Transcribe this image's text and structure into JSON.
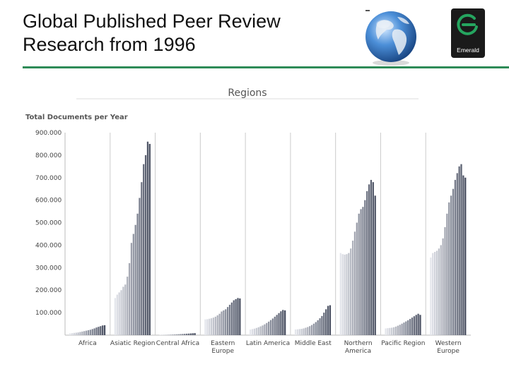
{
  "slide": {
    "title_line1": "Global Published Peer Review",
    "title_line2": "Research from 1996",
    "logo_text": "Emerald",
    "accent_color": "#2e8b57"
  },
  "chart_data": {
    "type": "bar",
    "title": "Regions",
    "ylabel": "Total Documents per Year",
    "ylim": [
      0,
      900000
    ],
    "yticks": [
      "900.000",
      "800.000",
      "700.000",
      "600.000",
      "500.000",
      "400.000",
      "300.000",
      "200.000",
      "100.000"
    ],
    "grid": false,
    "legend": "none",
    "categories": [
      {
        "label_lines": [
          "Africa"
        ],
        "values": [
          8000,
          9000,
          10000,
          11000,
          12000,
          14000,
          16000,
          18000,
          20000,
          22000,
          24000,
          27000,
          30000,
          34000,
          37000,
          40000,
          43000,
          44000
        ]
      },
      {
        "label_lines": [
          "Asiatic Region"
        ],
        "values": [
          165000,
          180000,
          190000,
          200000,
          215000,
          225000,
          260000,
          320000,
          410000,
          450000,
          490000,
          540000,
          610000,
          680000,
          760000,
          800000,
          860000,
          850000
        ]
      },
      {
        "label_lines": [
          "Central Africa"
        ],
        "values": [
          1500,
          1700,
          2000,
          2200,
          2500,
          2800,
          3100,
          3500,
          3900,
          4300,
          4800,
          5300,
          5900,
          6500,
          7000,
          7800,
          8500,
          9000
        ]
      },
      {
        "label_lines": [
          "Eastern",
          "Europe"
        ],
        "values": [
          70000,
          71000,
          73000,
          75000,
          78000,
          82000,
          88000,
          95000,
          105000,
          110000,
          115000,
          125000,
          135000,
          145000,
          155000,
          160000,
          165000,
          163000
        ]
      },
      {
        "label_lines": [
          "Latin America"
        ],
        "values": [
          25000,
          27000,
          29000,
          32000,
          35000,
          39000,
          43000,
          48000,
          54000,
          60000,
          67000,
          74000,
          82000,
          90000,
          98000,
          106000,
          112000,
          110000
        ]
      },
      {
        "label_lines": [
          "Middle East"
        ],
        "values": [
          25000,
          26000,
          27000,
          28000,
          30000,
          33000,
          36000,
          40000,
          45000,
          51000,
          58000,
          66000,
          75000,
          85000,
          100000,
          115000,
          130000,
          133000
        ]
      },
      {
        "label_lines": [
          "Northern",
          "America"
        ],
        "values": [
          365000,
          360000,
          358000,
          360000,
          365000,
          385000,
          420000,
          460000,
          500000,
          540000,
          560000,
          570000,
          600000,
          640000,
          670000,
          690000,
          680000,
          620000
        ]
      },
      {
        "label_lines": [
          "Pacific Region"
        ],
        "values": [
          30000,
          31000,
          32000,
          33000,
          35000,
          38000,
          42000,
          46000,
          51000,
          56000,
          61000,
          66000,
          72000,
          78000,
          84000,
          90000,
          95000,
          90000
        ]
      },
      {
        "label_lines": [
          "Western",
          "Europe"
        ],
        "values": [
          345000,
          365000,
          370000,
          375000,
          385000,
          400000,
          430000,
          480000,
          540000,
          590000,
          620000,
          650000,
          690000,
          720000,
          750000,
          760000,
          710000,
          700000
        ]
      }
    ]
  }
}
